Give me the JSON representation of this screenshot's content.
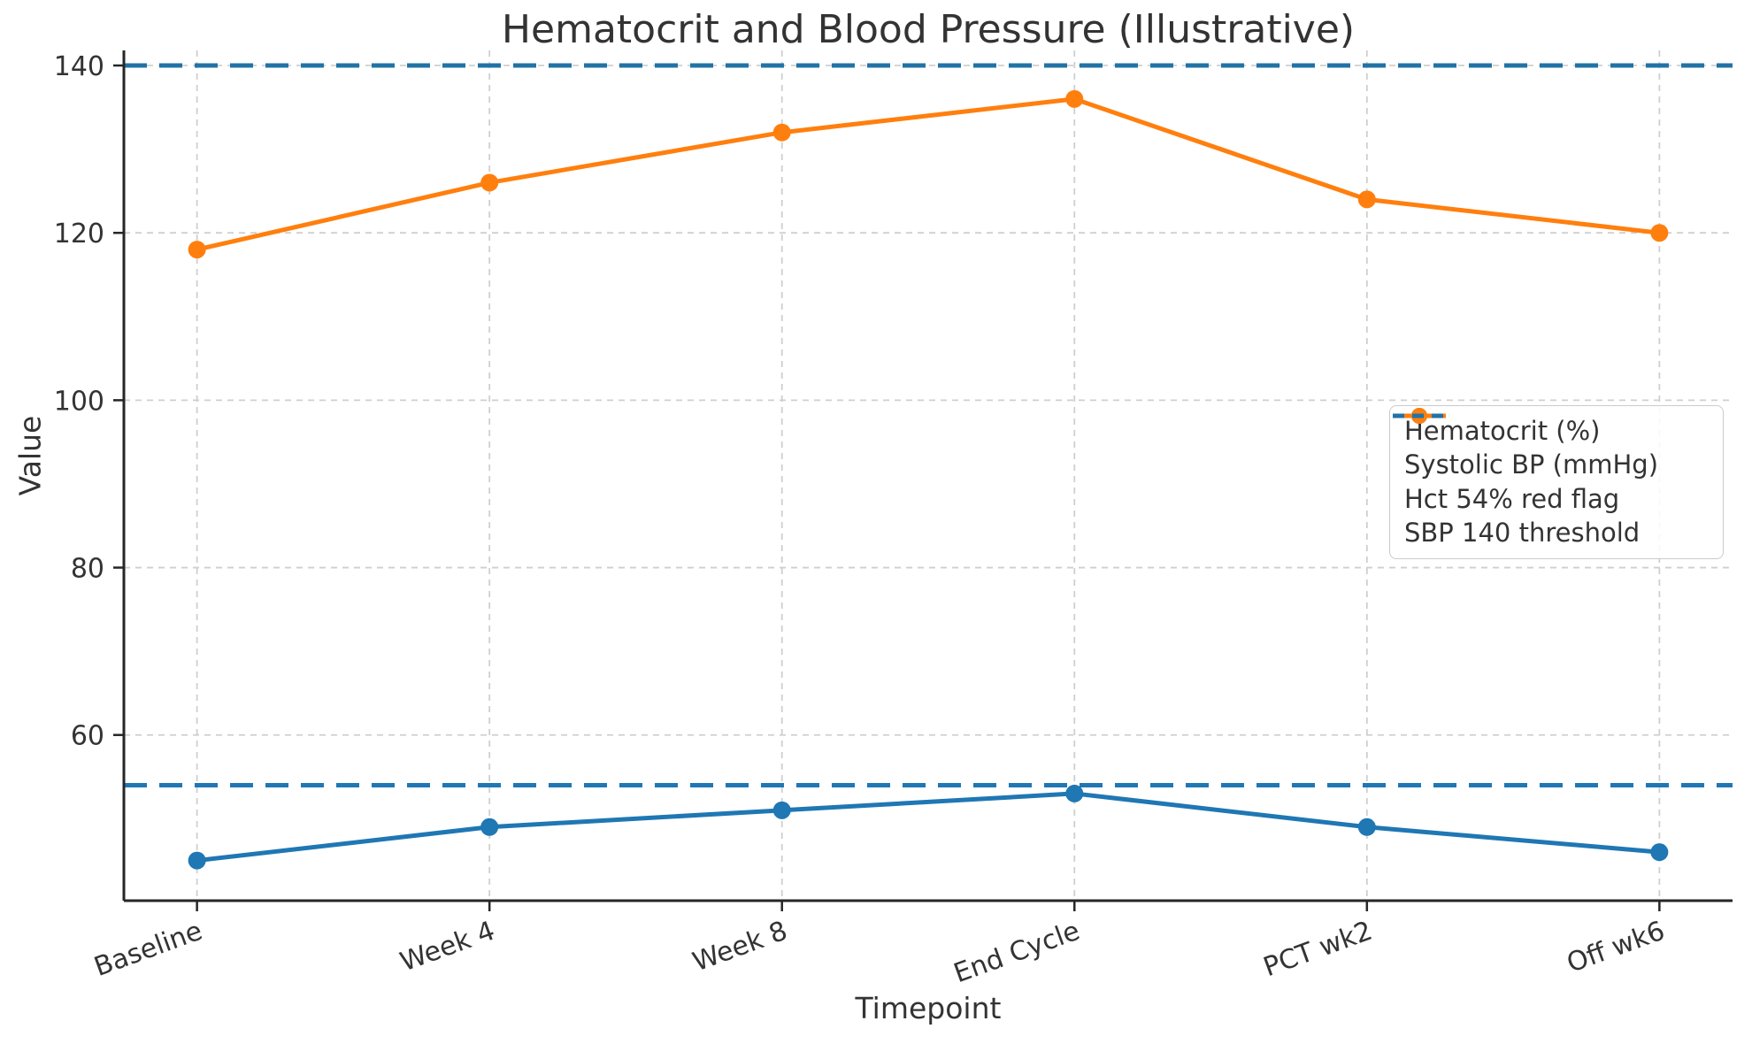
{
  "chart_data": {
    "type": "line",
    "title": "Hematocrit and Blood Pressure (Illustrative)",
    "xlabel": "Timepoint",
    "ylabel": "Value",
    "categories": [
      "Baseline",
      "Week 4",
      "Week 8",
      "End Cycle",
      "PCT wk2",
      "Off wk6"
    ],
    "series": [
      {
        "name": "Hematocrit (%)",
        "color": "#1f77b4",
        "linestyle": "solid",
        "marker": "circle",
        "values": [
          45,
          49,
          51,
          53,
          49,
          46
        ]
      },
      {
        "name": "Systolic BP (mmHg)",
        "color": "#ff7f0e",
        "linestyle": "solid",
        "marker": "circle",
        "values": [
          118,
          126,
          132,
          136,
          124,
          120
        ]
      }
    ],
    "thresholds": [
      {
        "name": "Hct 54% red flag",
        "color": "#1f77b4",
        "linestyle": "dashed",
        "value": 54
      },
      {
        "name": "SBP 140 threshold",
        "color": "#2273a5",
        "linestyle": "dashed",
        "value": 140
      }
    ],
    "yticks": [
      60,
      80,
      100,
      120,
      140
    ],
    "ylim": [
      40.2,
      141.8
    ],
    "grid": true,
    "legend_position": "center right",
    "xtick_rotation": 20,
    "grid_color": "#cfcfcf",
    "spine_color": "#262626",
    "text_color": "#333333",
    "background": "#ffffff"
  }
}
